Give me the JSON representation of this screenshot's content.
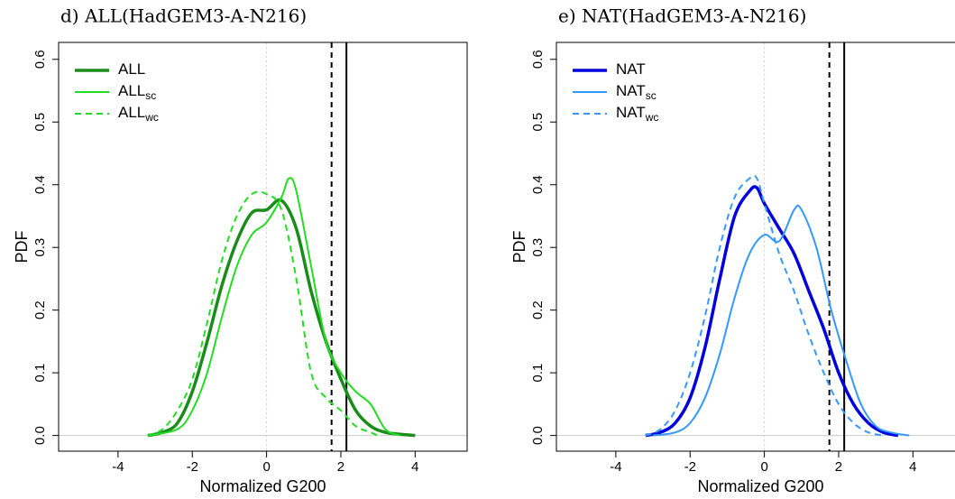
{
  "chart_data": [
    {
      "type": "line",
      "title": "d) ALL(HadGEM3-A-N216)",
      "x_label": "Normalized G200",
      "y_label": "PDF",
      "xlim": [
        -5.6,
        5.4
      ],
      "ylim": [
        -0.025,
        0.627
      ],
      "xticks": [
        -4,
        -2,
        0,
        2,
        4
      ],
      "yticks": [
        {
          "value": 0,
          "label": "0.0"
        },
        0.1,
        0.2,
        0.3,
        0.4,
        0.5,
        0.6
      ],
      "legend": "topleft",
      "vlines": [
        {
          "value": 1.75,
          "style": "dashed"
        },
        {
          "value": 2.15,
          "style": "solid"
        }
      ],
      "series": [
        {
          "name": "ALL",
          "color": "#1a8c1a",
          "width": 3.5,
          "style": "solid",
          "x": [
            -3.2,
            -2.8,
            -2.4,
            -2,
            -1.6,
            -1.2,
            -0.8,
            -0.4,
            0,
            0.4,
            0.8,
            1.2,
            1.6,
            2.0,
            2.4,
            2.8,
            3.2,
            3.6,
            4.0
          ],
          "values": [
            0,
            0.005,
            0.02,
            0.07,
            0.15,
            0.24,
            0.31,
            0.355,
            0.36,
            0.375,
            0.33,
            0.23,
            0.15,
            0.09,
            0.04,
            0.015,
            0.005,
            0.002,
            0
          ]
        },
        {
          "name": "ALL",
          "subscript": "sc",
          "color": "#22dd22",
          "width": 2,
          "style": "solid",
          "x": [
            -3.2,
            -2.4,
            -2,
            -1.6,
            -1.2,
            -0.8,
            -0.4,
            0,
            0.4,
            0.6,
            0.8,
            1.2,
            1.6,
            2.0,
            2.4,
            2.8,
            3.2,
            3.6
          ],
          "values": [
            0,
            0.01,
            0.04,
            0.1,
            0.19,
            0.27,
            0.32,
            0.34,
            0.38,
            0.41,
            0.39,
            0.27,
            0.15,
            0.1,
            0.07,
            0.05,
            0.01,
            0
          ]
        },
        {
          "name": "ALL",
          "subscript": "wc",
          "color": "#22dd22",
          "width": 2,
          "style": "dashed",
          "x": [
            -3.2,
            -2.8,
            -2.4,
            -2,
            -1.6,
            -1.2,
            -0.8,
            -0.4,
            0,
            0.4,
            0.8,
            1.2,
            1.6,
            2.0,
            2.4,
            2.8,
            3.0
          ],
          "values": [
            0,
            0.01,
            0.04,
            0.09,
            0.18,
            0.28,
            0.35,
            0.385,
            0.385,
            0.36,
            0.25,
            0.1,
            0.06,
            0.04,
            0.015,
            0.005,
            0
          ]
        }
      ]
    },
    {
      "type": "line",
      "title": "e) NAT(HadGEM3-A-N216)",
      "x_label": "Normalized G200",
      "y_label": "PDF",
      "xlim": [
        -5.6,
        5.4
      ],
      "ylim": [
        -0.025,
        0.627
      ],
      "xticks": [
        -4,
        -2,
        0,
        2,
        4
      ],
      "yticks": [
        {
          "value": 0,
          "label": "0.0"
        },
        0.1,
        0.2,
        0.3,
        0.4,
        0.5,
        0.6
      ],
      "legend": "topleft",
      "vlines": [
        {
          "value": 1.75,
          "style": "dashed"
        },
        {
          "value": 2.15,
          "style": "solid"
        }
      ],
      "series": [
        {
          "name": "NAT",
          "color": "#0000dd",
          "width": 3.5,
          "style": "solid",
          "x": [
            -3.2,
            -2.8,
            -2.4,
            -2,
            -1.6,
            -1.2,
            -0.8,
            -0.4,
            -0.2,
            0,
            0.4,
            0.8,
            1.2,
            1.6,
            2.0,
            2.4,
            2.8,
            3.2,
            3.6
          ],
          "values": [
            0,
            0.005,
            0.02,
            0.06,
            0.14,
            0.25,
            0.35,
            0.39,
            0.395,
            0.37,
            0.33,
            0.29,
            0.23,
            0.17,
            0.1,
            0.05,
            0.02,
            0.005,
            0
          ]
        },
        {
          "name": "NAT",
          "subscript": "sc",
          "color": "#3399ff",
          "width": 2,
          "style": "solid",
          "x": [
            -3.0,
            -2.4,
            -2,
            -1.6,
            -1.2,
            -0.8,
            -0.4,
            0,
            0.4,
            0.8,
            1.0,
            1.4,
            1.8,
            2.2,
            2.6,
            3.0,
            3.4,
            3.9
          ],
          "values": [
            0,
            0.005,
            0.02,
            0.06,
            0.13,
            0.22,
            0.29,
            0.32,
            0.31,
            0.36,
            0.36,
            0.3,
            0.2,
            0.12,
            0.05,
            0.015,
            0.005,
            0
          ]
        },
        {
          "name": "NAT",
          "subscript": "wc",
          "color": "#3399ff",
          "width": 2,
          "style": "dashed",
          "x": [
            -3.2,
            -2.8,
            -2.4,
            -2,
            -1.6,
            -1.2,
            -0.8,
            -0.4,
            -0.2,
            0,
            0.4,
            0.8,
            1.2,
            1.6,
            2.0,
            2.4,
            2.8,
            3.2
          ],
          "values": [
            0,
            0.01,
            0.04,
            0.1,
            0.19,
            0.3,
            0.38,
            0.41,
            0.41,
            0.37,
            0.29,
            0.23,
            0.16,
            0.1,
            0.05,
            0.02,
            0.005,
            0
          ]
        }
      ]
    }
  ]
}
